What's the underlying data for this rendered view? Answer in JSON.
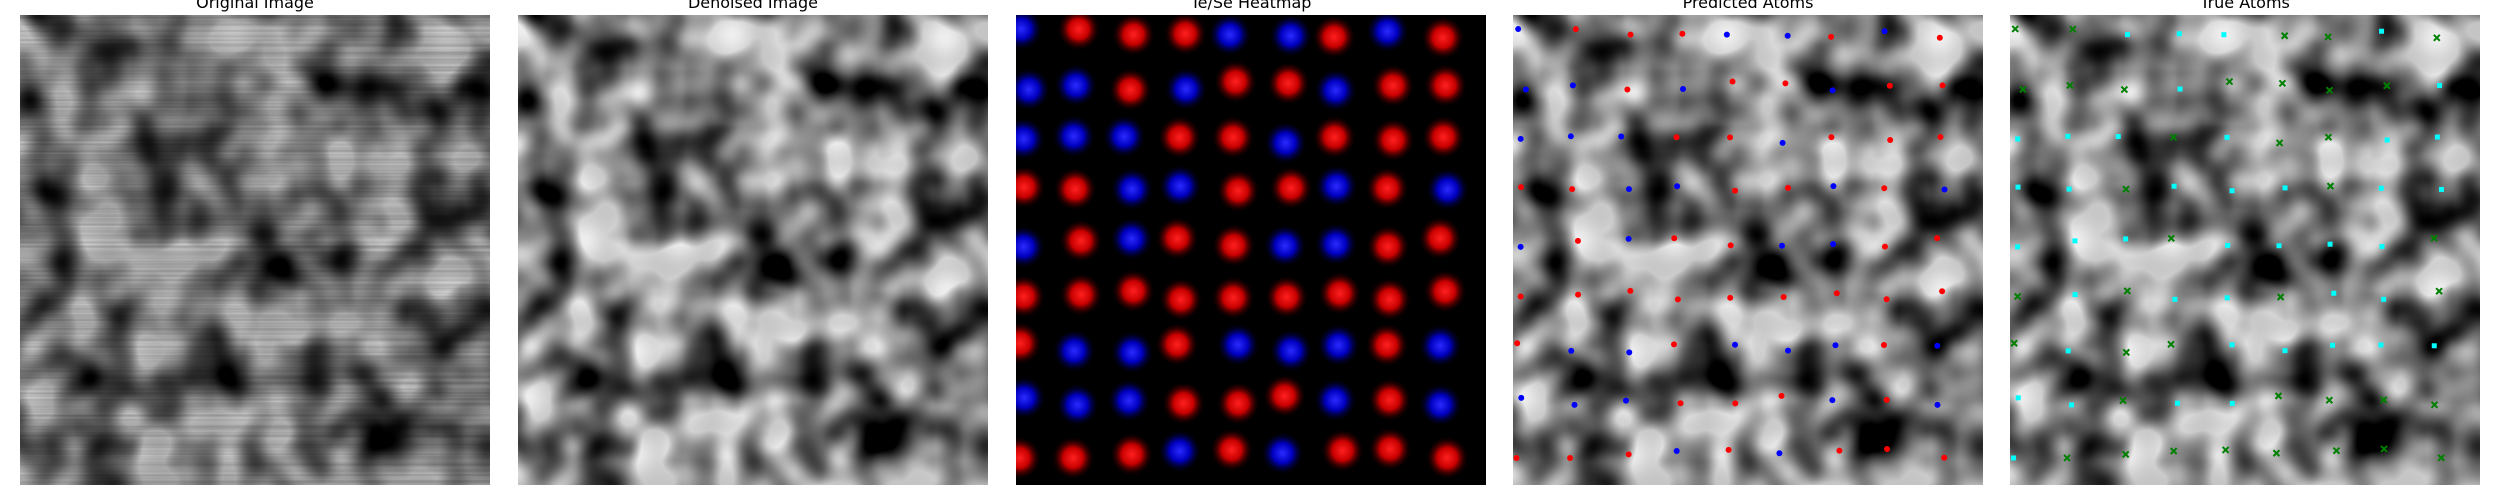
{
  "panels": [
    {
      "title": "Original Image"
    },
    {
      "title": "Denoised Image"
    },
    {
      "title": "Te/Se Heatmap"
    },
    {
      "title": "Predicted Atoms"
    },
    {
      "title": "True Atoms"
    }
  ],
  "colors": {
    "te": "#ff0000",
    "se": "#0000ff",
    "true_a": "#00ffff",
    "true_b": "#008000"
  }
}
